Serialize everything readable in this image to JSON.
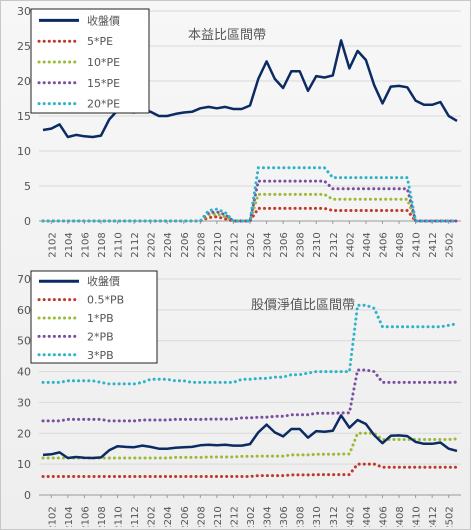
{
  "colors": {
    "price": "#0b2b63",
    "m1": "#c0392b",
    "m2": "#9bbb38",
    "m3": "#7a4fa0",
    "m4": "#2fb3c8"
  },
  "chart_data": [
    {
      "type": "line",
      "title": "本益比區間帶",
      "x": [
        "2101",
        "2102",
        "2103",
        "2104",
        "2105",
        "2106",
        "2107",
        "2108",
        "2109",
        "2110",
        "2111",
        "2112",
        "2201",
        "2202",
        "2203",
        "2204",
        "2205",
        "2206",
        "2207",
        "2208",
        "2209",
        "2210",
        "2211",
        "2212",
        "2301",
        "2302",
        "2303",
        "2304",
        "2305",
        "2306",
        "2307",
        "2308",
        "2309",
        "2310",
        "2311",
        "2312",
        "2401",
        "2402",
        "2403",
        "2404",
        "2405",
        "2406",
        "2407",
        "2408",
        "2409",
        "2410",
        "2411",
        "2412",
        "2501",
        "2502",
        "2503"
      ],
      "tick_labels": [
        "2102",
        "2104",
        "2106",
        "2108",
        "2110",
        "2112",
        "2202",
        "2204",
        "2206",
        "2208",
        "2210",
        "2212",
        "2302",
        "2304",
        "2306",
        "2308",
        "2310",
        "2312",
        "2402",
        "2404",
        "2406",
        "2408",
        "2410",
        "2412",
        "2502"
      ],
      "ylim": [
        0,
        30
      ],
      "yticks": [
        0,
        5,
        10,
        15,
        20,
        25,
        30
      ],
      "series": [
        {
          "name": "收盤價",
          "style": "solid",
          "colorKey": "price",
          "values": [
            13,
            13.2,
            13.8,
            12,
            12.3,
            12.1,
            12,
            12.2,
            14.5,
            15.8,
            15.6,
            15.5,
            16,
            15.6,
            15,
            15,
            15.3,
            15.5,
            15.6,
            16.1,
            16.3,
            16.1,
            16.3,
            16,
            16,
            16.5,
            20.3,
            22.8,
            20.3,
            19,
            21.4,
            21.4,
            18.6,
            20.7,
            20.5,
            20.8,
            25.8,
            21.8,
            24.3,
            23,
            19.4,
            16.8,
            19.2,
            19.3,
            19.1,
            17.2,
            16.6,
            16.6,
            17,
            15,
            14.3
          ]
        },
        {
          "name": "5*PE",
          "style": "dotted",
          "colorKey": "m1",
          "values": [
            0,
            0,
            0,
            0,
            0,
            0,
            0,
            0,
            0,
            0,
            0,
            0,
            0,
            0,
            0,
            0,
            0,
            0,
            0,
            0,
            0.5,
            0.6,
            0.3,
            0,
            0,
            0,
            1.8,
            1.8,
            1.8,
            1.8,
            1.8,
            1.8,
            1.8,
            1.8,
            1.8,
            1.5,
            1.5,
            1.5,
            1.5,
            1.5,
            1.5,
            1.5,
            1.5,
            1.5,
            1.5,
            0,
            0,
            0,
            0,
            0,
            0
          ]
        },
        {
          "name": "10*PE",
          "style": "dotted",
          "colorKey": "m2",
          "values": [
            0,
            0,
            0,
            0,
            0,
            0,
            0,
            0,
            0,
            0,
            0,
            0,
            0,
            0,
            0,
            0,
            0,
            0,
            0,
            0,
            0.9,
            1.0,
            0.6,
            0,
            0,
            0,
            3.8,
            3.8,
            3.8,
            3.8,
            3.8,
            3.8,
            3.8,
            3.8,
            3.8,
            3.1,
            3.1,
            3.1,
            3.1,
            3.1,
            3.1,
            3.1,
            3.1,
            3.1,
            3.1,
            0,
            0,
            0,
            0,
            0,
            0
          ]
        },
        {
          "name": "15*PE",
          "style": "dotted",
          "colorKey": "m3",
          "values": [
            0,
            0,
            0,
            0,
            0,
            0,
            0,
            0,
            0,
            0,
            0,
            0,
            0,
            0,
            0,
            0,
            0,
            0,
            0,
            0,
            1.2,
            1.3,
            0.9,
            0,
            0,
            0,
            5.7,
            5.7,
            5.7,
            5.7,
            5.7,
            5.7,
            5.7,
            5.7,
            5.7,
            4.6,
            4.6,
            4.6,
            4.6,
            4.6,
            4.6,
            4.6,
            4.6,
            4.6,
            4.6,
            0,
            0,
            0,
            0,
            0,
            0
          ]
        },
        {
          "name": "20*PE",
          "style": "dotted",
          "colorKey": "m4",
          "values": [
            0,
            0,
            0,
            0,
            0,
            0,
            0,
            0,
            0,
            0,
            0,
            0,
            0,
            0,
            0,
            0,
            0,
            0,
            0,
            0,
            1.5,
            1.7,
            1.2,
            0,
            0,
            0,
            7.6,
            7.6,
            7.6,
            7.6,
            7.6,
            7.6,
            7.6,
            7.6,
            7.6,
            6.2,
            6.2,
            6.2,
            6.2,
            6.2,
            6.2,
            6.2,
            6.2,
            6.2,
            6.2,
            0,
            0,
            0,
            0,
            0,
            0
          ]
        }
      ]
    },
    {
      "type": "line",
      "title": "股價淨值比區間帶",
      "x": [
        "2101",
        "2102",
        "2103",
        "2104",
        "2105",
        "2106",
        "2107",
        "2108",
        "2109",
        "2110",
        "2111",
        "2112",
        "2201",
        "2202",
        "2203",
        "2204",
        "2205",
        "2206",
        "2207",
        "2208",
        "2209",
        "2210",
        "2211",
        "2212",
        "2301",
        "2302",
        "2303",
        "2304",
        "2305",
        "2306",
        "2307",
        "2308",
        "2309",
        "2310",
        "2311",
        "2312",
        "2401",
        "2402",
        "2403",
        "2404",
        "2405",
        "2406",
        "2407",
        "2408",
        "2409",
        "2410",
        "2411",
        "2412",
        "2501",
        "2502",
        "2503"
      ],
      "tick_labels": [
        "2102",
        "2104",
        "2106",
        "2108",
        "2110",
        "2112",
        "2202",
        "2204",
        "2206",
        "2208",
        "2210",
        "2212",
        "2302",
        "2304",
        "2306",
        "2308",
        "2310",
        "2312",
        "2402",
        "2404",
        "2406",
        "2408",
        "2410",
        "2412",
        "2502"
      ],
      "ylim": [
        0,
        70
      ],
      "yticks": [
        0,
        10,
        20,
        30,
        40,
        50,
        60,
        70
      ],
      "series": [
        {
          "name": "收盤價",
          "style": "solid",
          "colorKey": "price",
          "values": [
            13,
            13.2,
            13.8,
            12,
            12.3,
            12.1,
            12,
            12.2,
            14.5,
            15.8,
            15.6,
            15.5,
            16,
            15.6,
            15,
            15,
            15.3,
            15.5,
            15.6,
            16.1,
            16.3,
            16.1,
            16.3,
            16,
            16,
            16.5,
            20.3,
            22.8,
            20.3,
            19,
            21.4,
            21.4,
            18.6,
            20.7,
            20.5,
            20.8,
            25.8,
            21.8,
            24.3,
            23,
            19.4,
            16.8,
            19.2,
            19.3,
            19.1,
            17.2,
            16.6,
            16.6,
            17,
            15,
            14.3
          ]
        },
        {
          "name": "0.5*PB",
          "style": "dotted",
          "colorKey": "m1",
          "values": [
            6,
            6,
            6,
            6,
            6,
            6,
            6,
            6,
            6,
            6,
            6,
            6,
            6,
            6,
            6,
            6,
            6,
            6,
            6,
            6,
            6,
            6,
            6,
            6,
            6,
            6,
            6.3,
            6.3,
            6.3,
            6.3,
            6.5,
            6.5,
            6.5,
            6.6,
            6.6,
            6.6,
            6.6,
            6.6,
            10,
            10,
            10,
            9,
            9,
            9,
            9,
            9,
            9,
            9,
            9,
            9,
            9
          ]
        },
        {
          "name": "1*PB",
          "style": "dotted",
          "colorKey": "m2",
          "values": [
            12,
            12,
            12,
            12,
            12,
            12,
            12,
            12,
            12,
            12,
            12,
            12,
            12,
            12,
            12,
            12,
            12.2,
            12.2,
            12.2,
            12.2,
            12.3,
            12.3,
            12.3,
            12.3,
            12.5,
            12.5,
            12.6,
            12.6,
            12.6,
            12.6,
            13,
            13,
            13,
            13.2,
            13.2,
            13.2,
            13.3,
            13.3,
            20,
            20,
            20,
            18,
            18,
            18,
            18,
            18,
            18,
            18,
            18,
            18,
            18.2
          ]
        },
        {
          "name": "2*PB",
          "style": "dotted",
          "colorKey": "m3",
          "values": [
            24,
            24,
            24,
            24.5,
            24.5,
            24.5,
            24.5,
            24.5,
            24,
            24,
            24,
            24,
            24.3,
            24.3,
            24.3,
            24.3,
            24.5,
            24.5,
            24.5,
            24.5,
            24.6,
            24.6,
            24.6,
            24.6,
            25,
            25,
            25.2,
            25.2,
            25.5,
            25.5,
            26,
            26,
            26,
            26.5,
            26.5,
            26.5,
            26.6,
            26.6,
            40.5,
            40.5,
            40,
            36.5,
            36.5,
            36.5,
            36.5,
            36.5,
            36.5,
            36.5,
            36.5,
            36.5,
            36.6
          ]
        },
        {
          "name": "3*PB",
          "style": "dotted",
          "colorKey": "m4",
          "values": [
            36.5,
            36.5,
            36.5,
            37,
            37,
            37,
            37,
            36.5,
            36,
            36,
            36,
            36,
            36.5,
            37.5,
            37.5,
            37.5,
            37,
            37,
            36.5,
            36.5,
            36.5,
            36.5,
            36.5,
            36.5,
            37.5,
            37.5,
            37.8,
            37.8,
            38.2,
            38.2,
            39,
            39,
            39.5,
            40,
            40,
            40,
            40,
            40,
            61.5,
            61.5,
            60.5,
            54.5,
            54.5,
            54.5,
            54.5,
            54.5,
            54.5,
            54.5,
            54.5,
            55,
            55.5
          ]
        }
      ]
    }
  ]
}
